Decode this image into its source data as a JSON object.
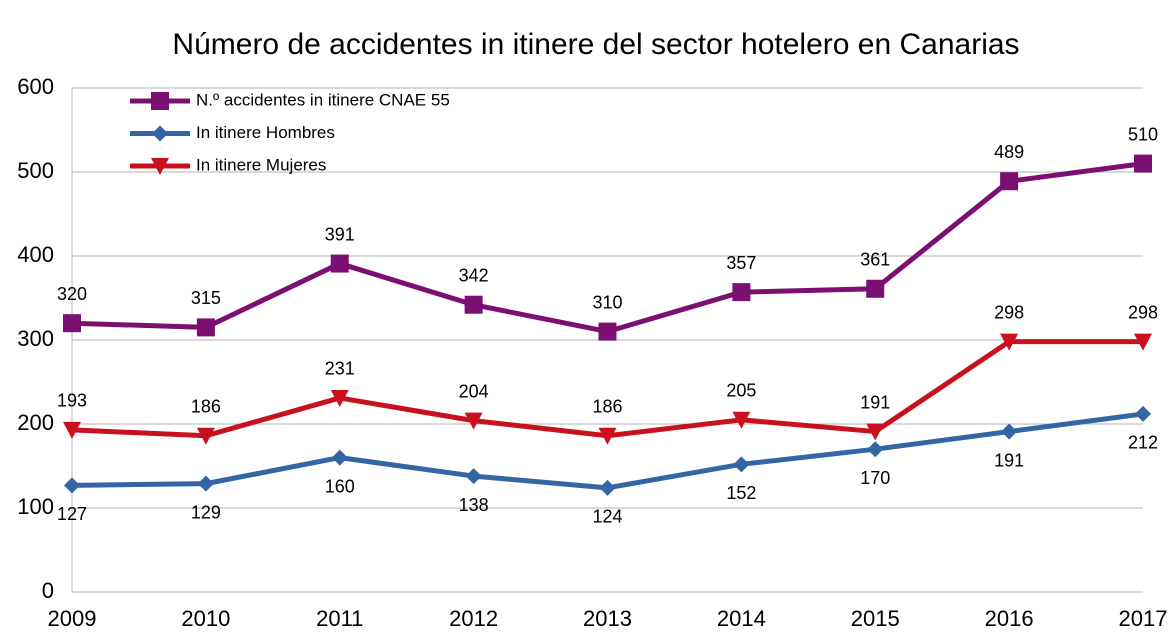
{
  "chart_data": {
    "type": "line",
    "title": "Número de accidentes in itinere del sector hotelero en Canarias",
    "categories": [
      "2009",
      "2010",
      "2011",
      "2012",
      "2013",
      "2014",
      "2015",
      "2016",
      "2017"
    ],
    "series": [
      {
        "name": "N.º accidentes in itinere CNAE 55",
        "color": "#7b0f72",
        "marker": "square",
        "values": [
          320,
          315,
          391,
          342,
          310,
          357,
          361,
          489,
          510
        ]
      },
      {
        "name": "In itinere Hombres",
        "color": "#3465a4",
        "marker": "diamond",
        "values": [
          127,
          129,
          160,
          138,
          124,
          152,
          170,
          191,
          212
        ]
      },
      {
        "name": "In itinere Mujeres",
        "color": "#c9111e",
        "marker": "triangle-down",
        "values": [
          193,
          186,
          231,
          204,
          186,
          205,
          191,
          298,
          298
        ]
      }
    ],
    "ylim": [
      0,
      600
    ],
    "yticks": [
      0,
      100,
      200,
      300,
      400,
      500,
      600
    ],
    "grid": true,
    "legend": "top-left"
  }
}
